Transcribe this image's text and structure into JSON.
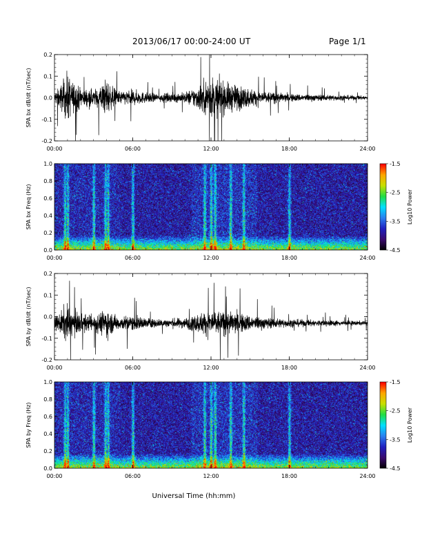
{
  "header": {
    "title": "2013/06/17  00:00-24:00 UT",
    "page": "Page 1/1"
  },
  "common": {
    "xlabel": "Universal Time (hh:mm)",
    "time_ticks": [
      "00:00",
      "06:00",
      "12:00",
      "18:00",
      "24:00"
    ]
  },
  "colors": {
    "trace": "#000000",
    "colormap": [
      "#000000",
      "#3a0a6e",
      "#2020c0",
      "#2a7ff0",
      "#00e0ff",
      "#22dd44",
      "#c8e000",
      "#ffa500",
      "#ff0000"
    ]
  },
  "chart_data": [
    {
      "type": "line",
      "ylabel": "SPA bx dB/dt (nT/sec)",
      "x_range_hours": [
        0,
        24
      ],
      "ylim": [
        -0.2,
        0.2
      ],
      "yticks": [
        "0.2",
        "0.1",
        "0.0",
        "-0.1",
        "-0.2"
      ],
      "baseline": 0.0,
      "activity_envelope": {
        "hour": [
          0,
          0.5,
          1.0,
          1.3,
          2.0,
          3.0,
          3.5,
          4.0,
          4.3,
          5.0,
          6.0,
          7.0,
          8.0,
          10.0,
          11.0,
          11.5,
          12.0,
          13.0,
          14.0,
          15.0,
          16.0,
          18.0,
          20.0,
          22.0,
          24.0
        ],
        "amplitude": [
          0.04,
          0.1,
          0.19,
          0.13,
          0.08,
          0.06,
          0.09,
          0.15,
          0.09,
          0.05,
          0.06,
          0.04,
          0.03,
          0.04,
          0.09,
          0.13,
          0.16,
          0.12,
          0.1,
          0.07,
          0.05,
          0.03,
          0.025,
          0.02,
          0.015
        ]
      }
    },
    {
      "type": "heatmap",
      "ylabel": "SPA bx Freq (Hz)",
      "x_range_hours": [
        0,
        24
      ],
      "ylim": [
        0,
        1.0
      ],
      "yticks": [
        "1.0",
        "0.8",
        "0.6",
        "0.4",
        "0.2",
        "0.0"
      ],
      "colorbar": {
        "label": "Log10 Power",
        "range": [
          -4.5,
          -1.5
        ],
        "ticks": [
          "-1.5",
          "-2.5",
          "-3.5",
          "-4.5"
        ]
      },
      "bursts_hour": [
        0.8,
        1.0,
        3.0,
        3.9,
        4.1,
        6.0,
        11.5,
        12.0,
        12.3,
        13.5,
        14.5,
        18.0
      ]
    },
    {
      "type": "line",
      "ylabel": "SPA by dB/dt (nT/sec)",
      "x_range_hours": [
        0,
        24
      ],
      "ylim": [
        -0.2,
        0.2
      ],
      "yticks": [
        "0.2",
        "0.1",
        "0.0",
        "-0.1",
        "-0.2"
      ],
      "baseline": -0.03,
      "activity_envelope": {
        "hour": [
          0,
          0.5,
          1.0,
          1.3,
          2.0,
          3.0,
          3.5,
          4.0,
          4.3,
          5.0,
          6.0,
          7.0,
          8.0,
          10.0,
          11.0,
          11.5,
          12.0,
          13.0,
          14.0,
          15.0,
          16.0,
          18.0,
          20.0,
          22.0,
          24.0
        ],
        "amplitude": [
          0.04,
          0.09,
          0.15,
          0.1,
          0.07,
          0.06,
          0.08,
          0.12,
          0.08,
          0.05,
          0.06,
          0.04,
          0.03,
          0.04,
          0.07,
          0.09,
          0.1,
          0.09,
          0.08,
          0.06,
          0.045,
          0.03,
          0.025,
          0.02,
          0.015
        ]
      }
    },
    {
      "type": "heatmap",
      "ylabel": "SPA by Freq (Hz)",
      "x_range_hours": [
        0,
        24
      ],
      "ylim": [
        0,
        1.0
      ],
      "yticks": [
        "1.0",
        "0.8",
        "0.6",
        "0.4",
        "0.2",
        "0.0"
      ],
      "colorbar": {
        "label": "Log10 Power",
        "range": [
          -4.5,
          -1.5
        ],
        "ticks": [
          "-1.5",
          "-2.5",
          "-3.5",
          "-4.5"
        ]
      },
      "bursts_hour": [
        0.8,
        1.0,
        3.0,
        3.9,
        4.1,
        6.0,
        11.5,
        12.0,
        12.3,
        13.5,
        14.5,
        18.0
      ]
    }
  ]
}
